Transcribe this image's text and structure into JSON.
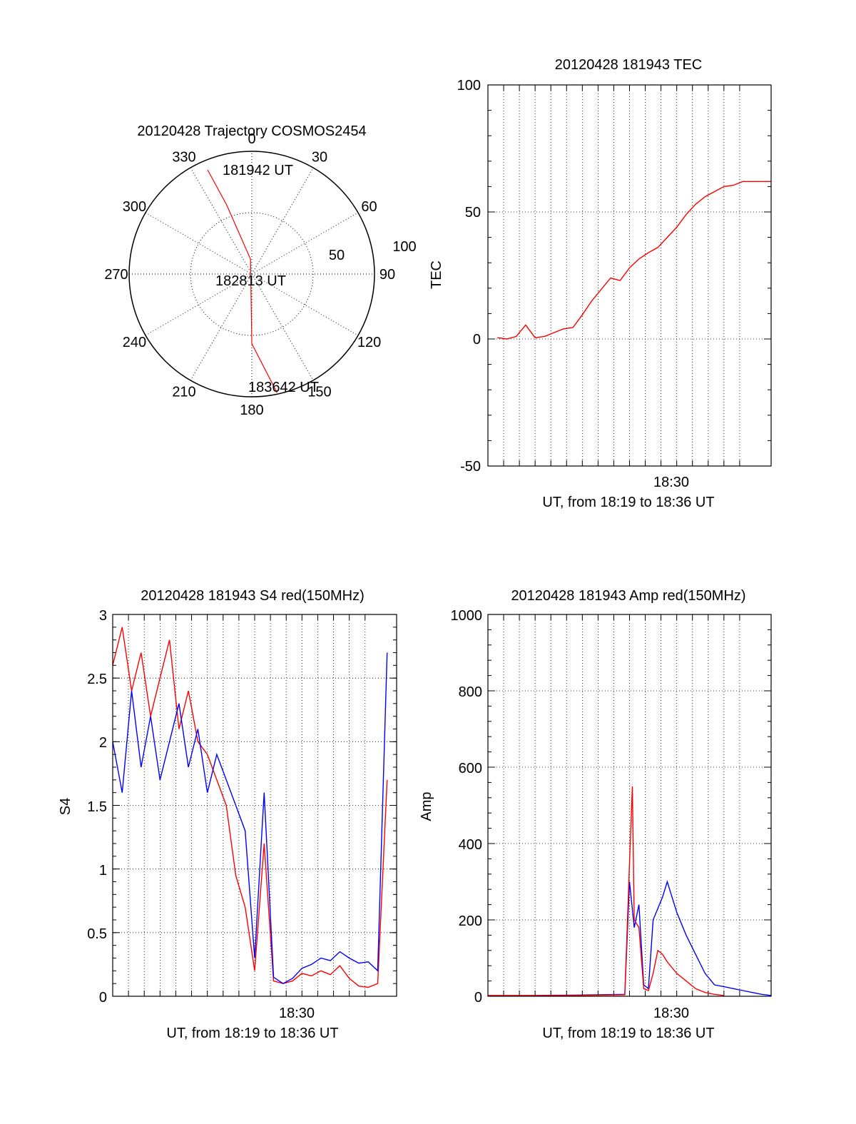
{
  "chart_data": [
    {
      "type": "polar",
      "title": "20120428 Trajectory COSMOS2454",
      "azimuth_labels": [
        "0",
        "30",
        "60",
        "90",
        "120",
        "150",
        "180",
        "210",
        "240",
        "270",
        "300",
        "330"
      ],
      "radial_labels": [
        "50",
        "100"
      ],
      "colors": {
        "track": "#ff0000",
        "frame": "#000000"
      },
      "track": {
        "azimuth_deg": [
          337,
          340,
          355,
          180,
          168
        ],
        "elevation_deg": [
          7,
          36,
          79,
          39,
          1
        ]
      },
      "annotations": [
        {
          "text": "181942 UT",
          "azimuth_deg": 337,
          "elevation_deg": 7
        },
        {
          "text": "182813 UT",
          "azimuth_deg": 355,
          "elevation_deg": 79
        },
        {
          "text": "183642 UT",
          "azimuth_deg": 168,
          "elevation_deg": 1
        }
      ]
    },
    {
      "type": "line",
      "title": "20120428 181943 TEC",
      "xlabel": "UT, from 18:19 to 18:36 UT",
      "ylabel": "TEC",
      "xlim": [
        18.31,
        18.61
      ],
      "ylim": [
        -50,
        100
      ],
      "yticks": [
        "-50",
        "0",
        "50",
        "100"
      ],
      "xtick_label": "18:30",
      "xtick_value": 18.5,
      "grid": true,
      "series": [
        {
          "color": "#ff0000",
          "x": [
            18.32,
            18.33,
            18.34,
            18.35,
            18.36,
            18.37,
            18.38,
            18.39,
            18.4,
            18.41,
            18.42,
            18.43,
            18.44,
            18.45,
            18.46,
            18.47,
            18.48,
            18.49,
            18.5,
            18.51,
            18.52,
            18.53,
            18.54,
            18.55,
            18.56,
            18.57,
            18.58,
            18.59,
            18.6,
            18.61
          ],
          "y": [
            0.5,
            0,
            1,
            5.5,
            0.5,
            1,
            2.5,
            4,
            4.5,
            9.5,
            15,
            19.5,
            24,
            23,
            28,
            31.5,
            34,
            36,
            40,
            44,
            49,
            53,
            56,
            58,
            60,
            60.5,
            62,
            62,
            62,
            62
          ]
        }
      ]
    },
    {
      "type": "line",
      "title": "20120428 181943 S4 red(150MHz)",
      "xlabel": "UT, from 18:19 to 18:36 UT",
      "ylabel": "S4",
      "xlim": [
        18.31,
        18.61
      ],
      "ylim": [
        0,
        3
      ],
      "yticks": [
        "0",
        "0.5",
        "1",
        "1.5",
        "2",
        "2.5",
        "3"
      ],
      "xtick_label": "18:30",
      "xtick_value": 18.5,
      "grid": true,
      "series": [
        {
          "color": "#ff0000",
          "x": [
            18.31,
            18.32,
            18.33,
            18.34,
            18.35,
            18.36,
            18.37,
            18.38,
            18.39,
            18.4,
            18.41,
            18.42,
            18.43,
            18.44,
            18.45,
            18.46,
            18.47,
            18.48,
            18.49,
            18.5,
            18.51,
            18.52,
            18.53,
            18.54,
            18.55,
            18.56,
            18.57,
            18.58,
            18.59,
            18.6
          ],
          "y": [
            2.6,
            2.9,
            2.4,
            2.7,
            2.2,
            2.5,
            2.8,
            2.1,
            2.4,
            2.0,
            1.9,
            1.7,
            1.5,
            0.95,
            0.7,
            0.2,
            1.2,
            0.12,
            0.1,
            0.12,
            0.18,
            0.16,
            0.2,
            0.17,
            0.24,
            0.14,
            0.08,
            0.07,
            0.1,
            1.7
          ]
        },
        {
          "color": "#0000ff",
          "x": [
            18.31,
            18.32,
            18.33,
            18.34,
            18.35,
            18.36,
            18.37,
            18.38,
            18.39,
            18.4,
            18.41,
            18.42,
            18.43,
            18.44,
            18.45,
            18.46,
            18.47,
            18.48,
            18.49,
            18.5,
            18.51,
            18.52,
            18.53,
            18.54,
            18.55,
            18.56,
            18.57,
            18.58,
            18.59,
            18.6
          ],
          "y": [
            2.0,
            1.6,
            2.4,
            1.8,
            2.2,
            1.7,
            2.0,
            2.3,
            1.8,
            2.1,
            1.6,
            1.9,
            1.7,
            1.5,
            1.3,
            0.3,
            1.6,
            0.15,
            0.1,
            0.14,
            0.22,
            0.25,
            0.3,
            0.28,
            0.35,
            0.3,
            0.26,
            0.27,
            0.2,
            2.7
          ]
        }
      ]
    },
    {
      "type": "line",
      "title": "20120428 181943 Amp red(150MHz)",
      "xlabel": "UT, from 18:19 to 18:36 UT",
      "ylabel": "Amp",
      "xlim": [
        18.31,
        18.61
      ],
      "ylim": [
        0,
        1000
      ],
      "yticks": [
        "0",
        "200",
        "400",
        "600",
        "800",
        "1000"
      ],
      "xtick_label": "18:30",
      "xtick_value": 18.5,
      "grid": true,
      "series": [
        {
          "color": "#0000ff",
          "x": [
            18.31,
            18.35,
            18.4,
            18.455,
            18.46,
            18.465,
            18.47,
            18.475,
            18.48,
            18.485,
            18.49,
            18.495,
            18.5,
            18.51,
            18.52,
            18.53,
            18.54,
            18.55,
            18.56,
            18.57,
            18.58,
            18.59,
            18.6,
            18.61
          ],
          "y": [
            2,
            2,
            3,
            5,
            300,
            180,
            240,
            30,
            20,
            200,
            230,
            260,
            300,
            220,
            160,
            110,
            60,
            30,
            25,
            20,
            15,
            10,
            5,
            2
          ]
        },
        {
          "color": "#ff0000",
          "x": [
            18.31,
            18.35,
            18.4,
            18.455,
            18.46,
            18.463,
            18.465,
            18.47,
            18.475,
            18.48,
            18.485,
            18.49,
            18.495,
            18.5,
            18.51,
            18.52,
            18.53,
            18.54,
            18.55,
            18.56
          ],
          "y": [
            2,
            2,
            2,
            4,
            350,
            550,
            200,
            180,
            20,
            15,
            60,
            120,
            110,
            90,
            60,
            40,
            20,
            10,
            5,
            2
          ]
        }
      ]
    }
  ]
}
